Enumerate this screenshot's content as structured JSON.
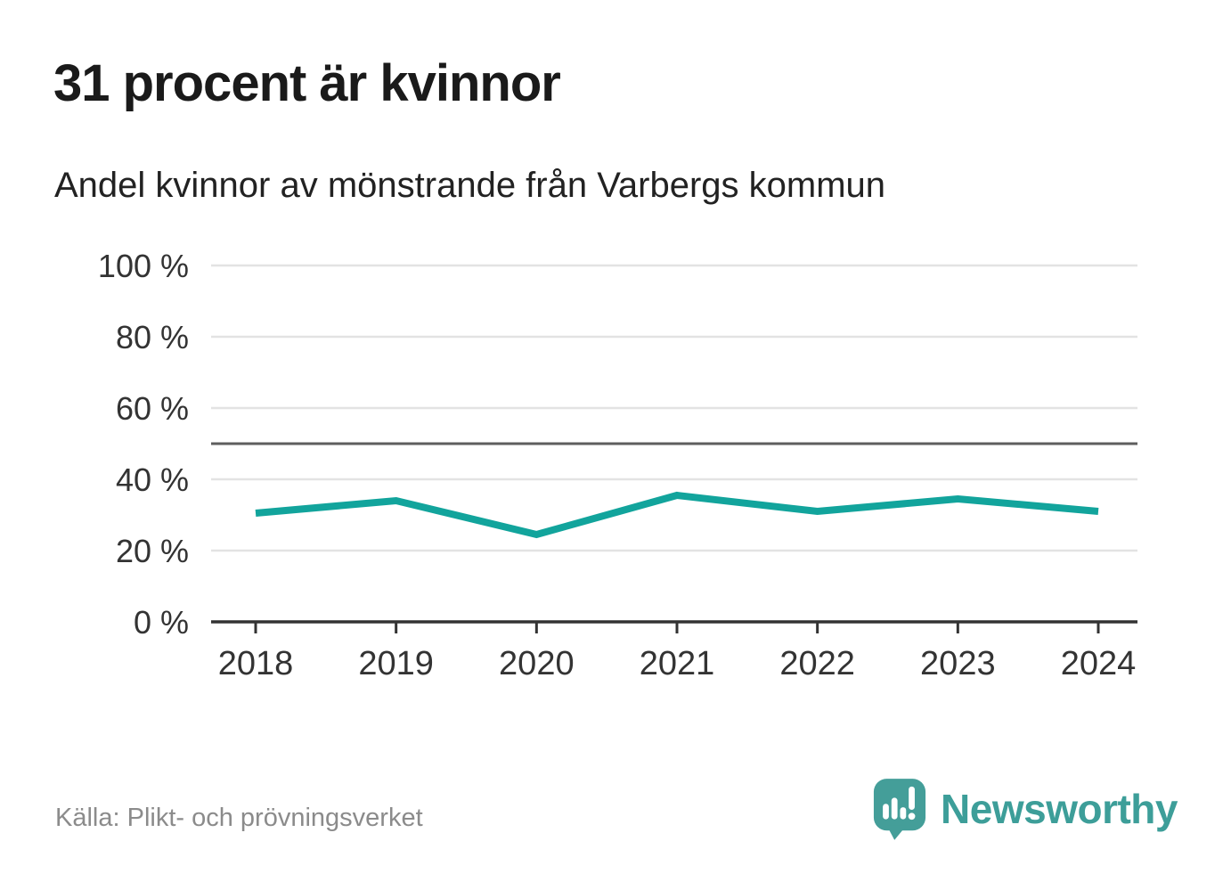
{
  "header": {
    "title": "31 procent är kvinnor",
    "subtitle": "Andel kvinnor av mönstrande från Varbergs kommun"
  },
  "footer": {
    "source": "Källa: Plikt- och prövningsverket",
    "brand": "Newsworthy"
  },
  "colors": {
    "line": "#12a49c",
    "gridline": "#e3e3e3",
    "reference_line": "#5e5e5e",
    "axis": "#333333",
    "tick_label": "#333333",
    "brand_teal": "#3d9e99"
  },
  "chart_data": {
    "type": "line",
    "title": "31 procent är kvinnor",
    "subtitle": "Andel kvinnor av mönstrande från Varbergs kommun",
    "source": "Källa: Plikt- och prövningsverket",
    "categories": [
      "2018",
      "2019",
      "2020",
      "2021",
      "2022",
      "2023",
      "2024"
    ],
    "series": [
      {
        "name": "Andel kvinnor",
        "values": [
          30.5,
          34,
          24.5,
          35.5,
          31,
          34.5,
          31
        ]
      }
    ],
    "unit": "%",
    "ylim": [
      0,
      100
    ],
    "yticks": [
      0,
      20,
      40,
      60,
      80,
      100
    ],
    "ytick_suffix": " %",
    "reference_line": 50,
    "grid": true,
    "legend": "none",
    "line_color": "#12a49c"
  }
}
